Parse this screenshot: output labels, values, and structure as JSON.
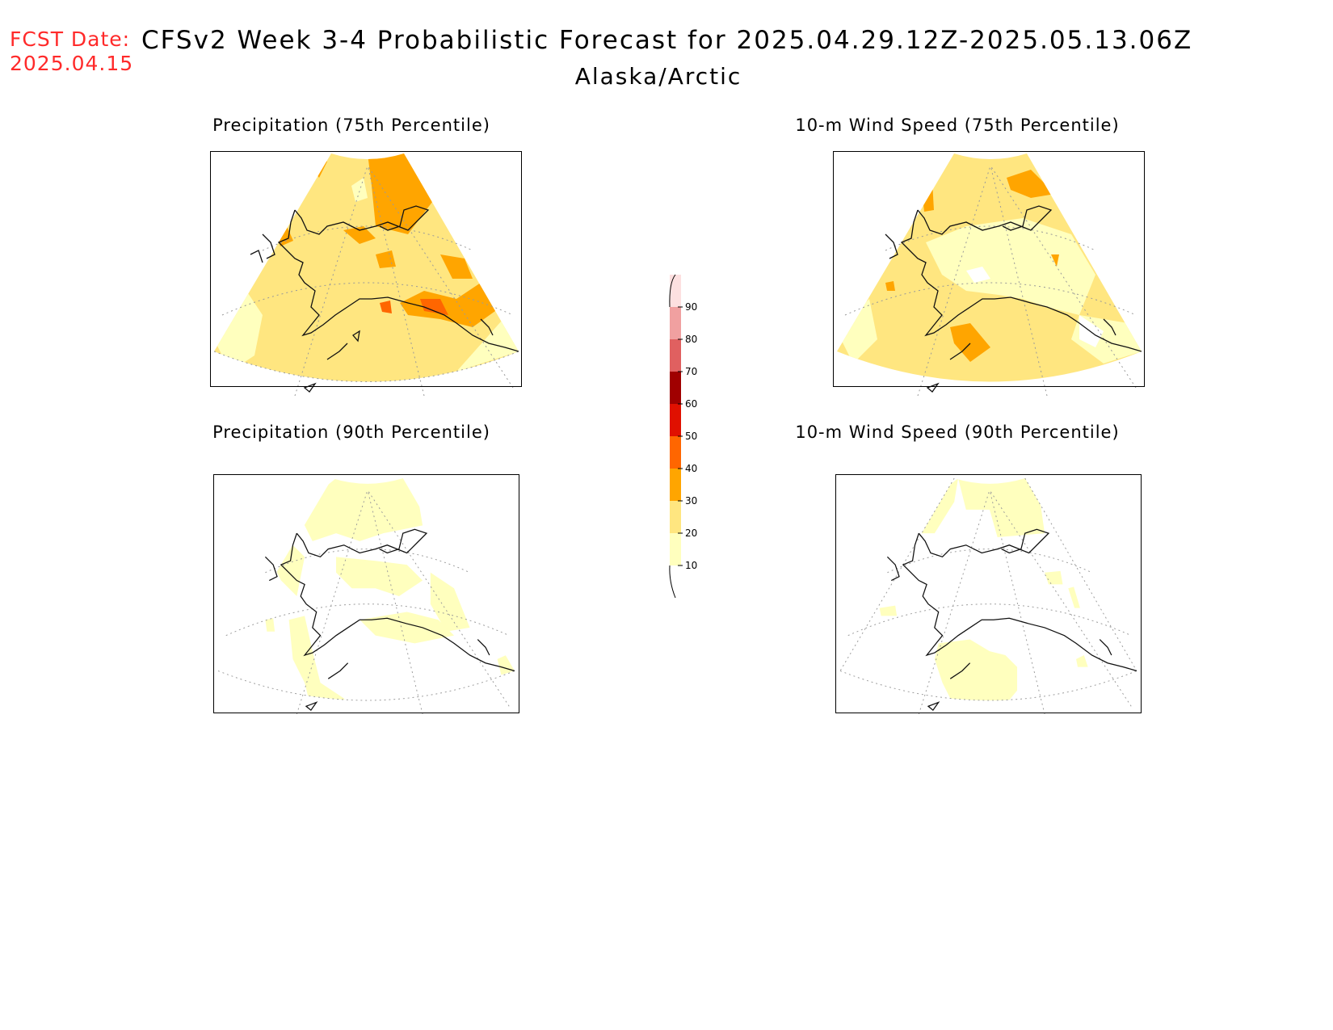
{
  "header": {
    "fcst_label": "FCST Date:",
    "fcst_date": "2025.04.15",
    "title": "CFSv2 Week 3-4 Probabilistic Forecast for 2025.04.29.12Z-2025.05.13.06Z",
    "region": "Alaska/Arctic"
  },
  "panels": [
    {
      "id": "precip75",
      "title": "Precipitation (75th Percentile)",
      "base_level": 20
    },
    {
      "id": "wind75",
      "title": "10-m Wind Speed (75th Percentile)",
      "base_level": 20
    },
    {
      "id": "precip90",
      "title": "Precipitation (90th Percentile)",
      "base_level": 0
    },
    {
      "id": "wind90",
      "title": "10-m Wind Speed (90th Percentile)",
      "base_level": 0
    }
  ],
  "colorbar": {
    "labels": [
      "10",
      "20",
      "30",
      "40",
      "50",
      "60",
      "70",
      "80",
      "90"
    ],
    "colors": [
      "#ffffbe",
      "#ffe680",
      "#ffa500",
      "#ff6600",
      "#e01000",
      "#a00000",
      "#e06060",
      "#f0a0a0",
      "#fde0e0"
    ]
  }
}
